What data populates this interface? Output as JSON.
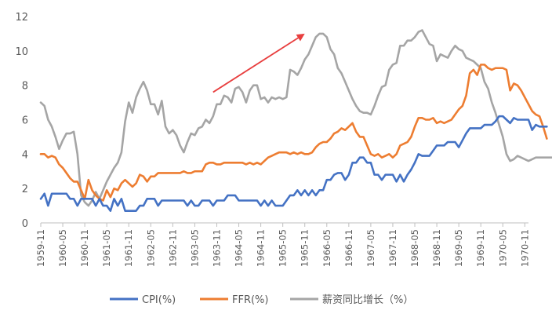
{
  "chart_data": {
    "type": "line",
    "title": "",
    "xlabel": "",
    "ylabel": "",
    "ylim": [
      0,
      12
    ],
    "yticks": [
      0,
      2,
      4,
      6,
      8,
      10,
      12
    ],
    "grid": "none",
    "legend_position": "bottom",
    "x_tick_labels": [
      "1959-11",
      "1960-05",
      "1960-11",
      "1961-05",
      "1961-11",
      "1962-05",
      "1962-11",
      "1963-05",
      "1963-11",
      "1964-05",
      "1964-11",
      "1965-05",
      "1965-11",
      "1966-05",
      "1966-11",
      "1967-05",
      "1967-11",
      "1968-05",
      "1968-11",
      "1969-05",
      "1969-11",
      "1970-05",
      "1970-11"
    ],
    "x_start": "1959-11",
    "x_end": "1970-12",
    "series": [
      {
        "name": "CPI(%)",
        "color": "#4472C4",
        "values": [
          1.4,
          1.7,
          1.0,
          1.7,
          1.7,
          1.7,
          1.7,
          1.7,
          1.4,
          1.4,
          1.0,
          1.4,
          1.4,
          1.4,
          1.4,
          1.0,
          1.4,
          1.0,
          1.0,
          0.7,
          1.4,
          1.0,
          1.4,
          0.7,
          0.7,
          0.7,
          0.7,
          1.0,
          1.0,
          1.4,
          1.4,
          1.4,
          1.0,
          1.3,
          1.3,
          1.3,
          1.3,
          1.3,
          1.3,
          1.3,
          1.0,
          1.3,
          1.0,
          1.0,
          1.3,
          1.3,
          1.3,
          1.0,
          1.3,
          1.3,
          1.3,
          1.6,
          1.6,
          1.6,
          1.3,
          1.3,
          1.3,
          1.3,
          1.3,
          1.3,
          1.0,
          1.3,
          1.0,
          1.3,
          1.0,
          1.0,
          1.0,
          1.3,
          1.6,
          1.6,
          1.9,
          1.6,
          1.9,
          1.6,
          1.9,
          1.6,
          1.9,
          1.9,
          2.5,
          2.5,
          2.8,
          2.9,
          2.9,
          2.5,
          2.8,
          3.5,
          3.5,
          3.8,
          3.8,
          3.5,
          3.5,
          2.8,
          2.8,
          2.5,
          2.8,
          2.8,
          2.8,
          2.4,
          2.8,
          2.4,
          2.8,
          3.1,
          3.5,
          4.0,
          3.9,
          3.9,
          3.9,
          4.2,
          4.5,
          4.5,
          4.5,
          4.7,
          4.7,
          4.7,
          4.4,
          4.8,
          5.2,
          5.5,
          5.5,
          5.5,
          5.5,
          5.7,
          5.7,
          5.7,
          5.9,
          6.2,
          6.2,
          6.0,
          5.8,
          6.1,
          6.0,
          6.0,
          6.0,
          6.0,
          5.4,
          5.7,
          5.6,
          5.6,
          5.6
        ]
      },
      {
        "name": "FFR(%)",
        "color": "#ED7D31",
        "values": [
          4.0,
          4.0,
          3.8,
          3.9,
          3.8,
          3.4,
          3.2,
          2.9,
          2.6,
          2.4,
          2.4,
          1.9,
          1.4,
          2.5,
          1.9,
          1.6,
          1.4,
          1.3,
          1.9,
          1.5,
          2.0,
          1.9,
          2.3,
          2.5,
          2.3,
          2.1,
          2.3,
          2.8,
          2.7,
          2.4,
          2.7,
          2.7,
          2.9,
          2.9,
          2.9,
          2.9,
          2.9,
          2.9,
          2.9,
          3.0,
          2.9,
          2.9,
          3.0,
          3.0,
          3.0,
          3.4,
          3.5,
          3.5,
          3.4,
          3.4,
          3.5,
          3.5,
          3.5,
          3.5,
          3.5,
          3.5,
          3.4,
          3.5,
          3.4,
          3.5,
          3.4,
          3.6,
          3.8,
          3.9,
          4.0,
          4.1,
          4.1,
          4.1,
          4.0,
          4.1,
          4.0,
          4.1,
          4.0,
          4.0,
          4.1,
          4.4,
          4.6,
          4.7,
          4.7,
          4.9,
          5.2,
          5.3,
          5.5,
          5.4,
          5.6,
          5.8,
          5.3,
          5.0,
          5.0,
          4.5,
          4.0,
          3.9,
          4.0,
          3.8,
          3.9,
          4.0,
          3.8,
          4.0,
          4.5,
          4.6,
          4.7,
          5.0,
          5.6,
          6.1,
          6.1,
          6.0,
          6.0,
          6.1,
          5.8,
          5.9,
          5.8,
          5.9,
          6.0,
          6.3,
          6.6,
          6.8,
          7.4,
          8.7,
          8.9,
          8.6,
          9.2,
          9.2,
          9.0,
          8.9,
          9.0,
          9.0,
          9.0,
          8.9,
          7.7,
          8.1,
          8.0,
          7.7,
          7.3,
          6.9,
          6.5,
          6.3,
          6.2,
          5.6,
          4.9
        ]
      },
      {
        "name": "薪资同比增长（%）",
        "color": "#A5A5A5",
        "values": [
          7.0,
          6.8,
          6.0,
          5.6,
          5.0,
          4.3,
          4.8,
          5.2,
          5.2,
          5.3,
          4.0,
          1.6,
          1.2,
          1.0,
          1.3,
          1.8,
          1.4,
          1.9,
          2.4,
          2.8,
          3.2,
          3.5,
          4.1,
          5.9,
          7.0,
          6.4,
          7.3,
          7.8,
          8.2,
          7.7,
          6.9,
          6.9,
          6.3,
          7.1,
          5.6,
          5.2,
          5.4,
          5.1,
          4.5,
          4.1,
          4.7,
          5.2,
          5.1,
          5.5,
          5.6,
          6.0,
          5.8,
          6.2,
          6.9,
          6.9,
          7.4,
          7.3,
          7.0,
          7.8,
          7.9,
          7.6,
          7.0,
          7.7,
          8.0,
          8.0,
          7.2,
          7.3,
          7.0,
          7.3,
          7.2,
          7.3,
          7.2,
          7.3,
          8.9,
          8.8,
          8.6,
          9.0,
          9.5,
          9.8,
          10.3,
          10.8,
          11.0,
          11.0,
          10.8,
          10.1,
          9.8,
          9.0,
          8.7,
          8.2,
          7.7,
          7.2,
          6.8,
          6.5,
          6.4,
          6.4,
          6.3,
          6.8,
          7.4,
          7.9,
          8.0,
          8.9,
          9.2,
          9.3,
          10.3,
          10.3,
          10.6,
          10.6,
          10.8,
          11.1,
          11.2,
          10.8,
          10.4,
          10.3,
          9.4,
          9.8,
          9.7,
          9.6,
          10.0,
          10.3,
          10.1,
          10.0,
          9.6,
          9.5,
          9.4,
          9.2,
          9.0,
          8.2,
          7.8,
          7.0,
          6.4,
          5.7,
          5.0,
          4.0,
          3.6,
          3.7,
          3.9,
          3.8,
          3.7,
          3.6,
          3.7,
          3.8,
          3.8,
          3.8,
          3.8,
          3.8,
          3.8
        ]
      }
    ],
    "annotations": [
      {
        "type": "arrow",
        "color": "#E83E3E",
        "from": [
          "1963-10",
          7.6
        ],
        "to": [
          "1965-11",
          11.0
        ]
      }
    ]
  }
}
